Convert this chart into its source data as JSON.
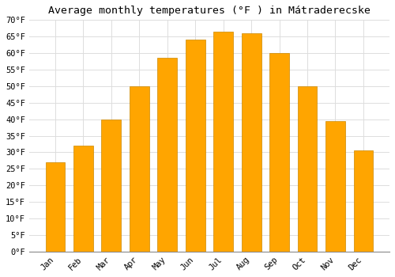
{
  "title": "Average monthly temperatures (°F ) in Mátraderecske",
  "months": [
    "Jan",
    "Feb",
    "Mar",
    "Apr",
    "May",
    "Jun",
    "Jul",
    "Aug",
    "Sep",
    "Oct",
    "Nov",
    "Dec"
  ],
  "values": [
    27,
    32,
    40,
    50,
    58.5,
    64,
    66.5,
    66,
    60,
    50,
    39.5,
    30.5
  ],
  "bar_color": "#FFA500",
  "bar_edge_color": "#CC8800",
  "ylim": [
    0,
    70
  ],
  "yticks": [
    0,
    5,
    10,
    15,
    20,
    25,
    30,
    35,
    40,
    45,
    50,
    55,
    60,
    65,
    70
  ],
  "background_color": "#ffffff",
  "grid_color": "#dddddd",
  "title_fontsize": 9.5,
  "tick_fontsize": 7.5,
  "font_family": "monospace"
}
